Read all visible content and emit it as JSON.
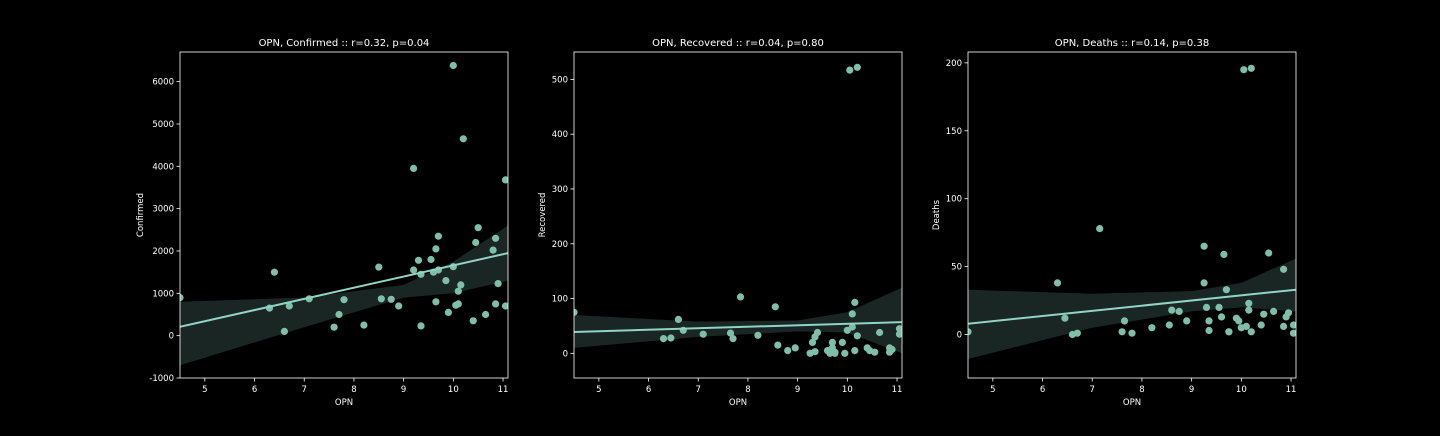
{
  "chart_data": [
    {
      "type": "scatter",
      "title": "OPN, Confirmed :: r=0.32, p=0.04",
      "xlabel": "OPN",
      "ylabel": "Confirmed",
      "xlim": [
        4.5,
        11.1
      ],
      "ylim": [
        -1000,
        6700
      ],
      "xticks": [
        5,
        6,
        7,
        8,
        9,
        10,
        11
      ],
      "yticks": [
        -1000,
        0,
        1000,
        2000,
        3000,
        4000,
        5000,
        6000
      ],
      "regression": {
        "x": [
          4.5,
          11.1
        ],
        "y": [
          210,
          1950
        ]
      },
      "band": {
        "x": [
          4.5,
          7.0,
          9.0,
          10.0,
          11.1
        ],
        "upper": [
          800,
          900,
          1200,
          1750,
          2600
        ],
        "lower": [
          -700,
          200,
          900,
          1000,
          1300
        ]
      },
      "points": {
        "x": [
          4.5,
          6.3,
          6.4,
          6.6,
          6.7,
          7.1,
          7.6,
          7.7,
          7.8,
          8.2,
          8.5,
          8.55,
          8.75,
          8.9,
          9.2,
          9.2,
          9.3,
          9.35,
          9.35,
          9.55,
          9.6,
          9.65,
          9.65,
          9.7,
          9.7,
          9.85,
          9.9,
          10.0,
          10.0,
          10.05,
          10.1,
          10.1,
          10.15,
          10.2,
          10.4,
          10.45,
          10.5,
          10.65,
          10.8,
          10.85,
          10.85,
          10.9,
          11.05,
          11.05
        ],
        "y": [
          900,
          650,
          1500,
          100,
          700,
          870,
          200,
          500,
          850,
          250,
          1620,
          870,
          860,
          700,
          3950,
          1550,
          1780,
          1450,
          230,
          1800,
          1500,
          2050,
          800,
          2350,
          1550,
          1300,
          550,
          1630,
          6380,
          720,
          750,
          1050,
          1200,
          4650,
          350,
          2200,
          2550,
          500,
          2020,
          2300,
          750,
          1230,
          700,
          3680
        ]
      },
      "colors": {
        "points": "#7fbfaa",
        "line": "#8fd4c4",
        "band": "#1c2a27"
      }
    },
    {
      "type": "scatter",
      "title": "OPN, Recovered :: r=0.04, p=0.80",
      "xlabel": "OPN",
      "ylabel": "Recovered",
      "xlim": [
        4.5,
        11.1
      ],
      "ylim": [
        -45,
        550
      ],
      "xticks": [
        5,
        6,
        7,
        8,
        9,
        10,
        11
      ],
      "yticks": [
        0,
        100,
        200,
        300,
        400,
        500
      ],
      "regression": {
        "x": [
          4.5,
          11.1
        ],
        "y": [
          39,
          57
        ]
      },
      "band": {
        "x": [
          4.5,
          7.0,
          9.0,
          10.0,
          11.1
        ],
        "upper": [
          70,
          58,
          60,
          75,
          120
        ],
        "lower": [
          10,
          30,
          40,
          38,
          0
        ]
      },
      "points": {
        "x": [
          4.5,
          6.3,
          6.45,
          6.6,
          6.7,
          7.1,
          7.65,
          7.7,
          7.85,
          8.2,
          8.55,
          8.6,
          8.8,
          8.95,
          9.25,
          9.3,
          9.35,
          9.35,
          9.4,
          9.6,
          9.65,
          9.7,
          9.7,
          9.75,
          9.75,
          9.9,
          9.95,
          10.0,
          10.05,
          10.1,
          10.1,
          10.15,
          10.15,
          10.2,
          10.2,
          10.4,
          10.45,
          10.55,
          10.65,
          10.85,
          10.85,
          10.9,
          11.05,
          11.05
        ],
        "y": [
          75,
          27,
          28,
          62,
          42,
          35,
          37,
          27,
          103,
          33,
          85,
          15,
          5,
          10,
          0,
          20,
          30,
          3,
          38,
          5,
          0,
          20,
          10,
          2,
          0,
          20,
          0,
          42,
          517,
          48,
          72,
          93,
          5,
          32,
          522,
          10,
          5,
          2,
          38,
          2,
          10,
          7,
          45,
          35
        ]
      },
      "colors": {
        "points": "#7fbfaa",
        "line": "#8fd4c4",
        "band": "#1c2a27"
      }
    },
    {
      "type": "scatter",
      "title": "OPN, Deaths :: r=0.14, p=0.38",
      "xlabel": "OPN",
      "ylabel": "Deaths",
      "xlim": [
        4.5,
        11.1
      ],
      "ylim": [
        -32,
        208
      ],
      "xticks": [
        5,
        6,
        7,
        8,
        9,
        10,
        11
      ],
      "yticks": [
        0,
        50,
        100,
        150,
        200
      ],
      "regression": {
        "x": [
          4.5,
          11.1
        ],
        "y": [
          8,
          33
        ]
      },
      "band": {
        "x": [
          4.5,
          7.0,
          9.0,
          10.0,
          11.1
        ],
        "upper": [
          33,
          30,
          32,
          38,
          56
        ],
        "lower": [
          -18,
          5,
          17,
          20,
          17
        ]
      },
      "points": {
        "x": [
          4.5,
          6.3,
          6.45,
          6.6,
          6.7,
          7.15,
          7.6,
          7.65,
          7.8,
          8.2,
          8.55,
          8.6,
          8.75,
          8.9,
          9.25,
          9.25,
          9.3,
          9.35,
          9.35,
          9.55,
          9.6,
          9.65,
          9.7,
          9.75,
          9.75,
          9.9,
          9.95,
          10.0,
          10.05,
          10.1,
          10.15,
          10.15,
          10.2,
          10.2,
          10.4,
          10.45,
          10.55,
          10.65,
          10.85,
          10.85,
          10.9,
          10.95,
          11.05,
          11.05
        ],
        "y": [
          2,
          38,
          12,
          0,
          1,
          78,
          2,
          10,
          1,
          5,
          7,
          18,
          17,
          10,
          38,
          65,
          20,
          3,
          10,
          20,
          13,
          59,
          33,
          2,
          2,
          12,
          10,
          5,
          195,
          6,
          18,
          23,
          196,
          2,
          7,
          15,
          60,
          17,
          6,
          48,
          13,
          16,
          7,
          1
        ]
      },
      "colors": {
        "points": "#7fbfaa",
        "line": "#8fd4c4",
        "band": "#1c2a27"
      }
    }
  ]
}
